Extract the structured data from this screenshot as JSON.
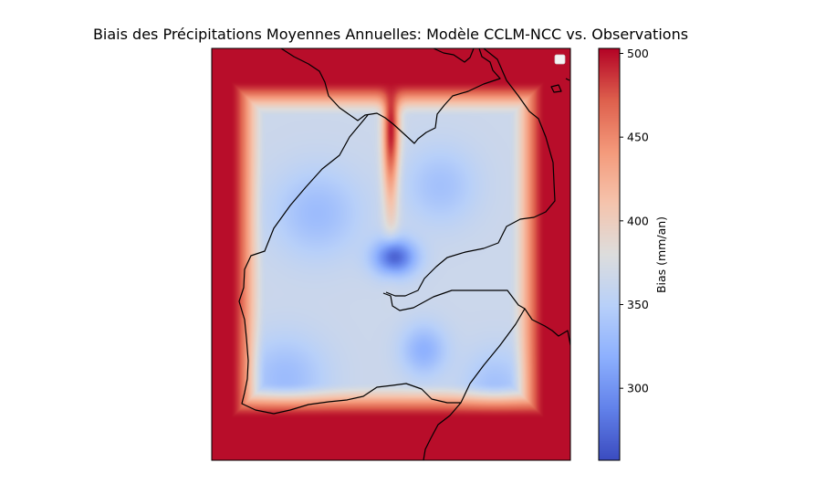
{
  "chart_data": {
    "type": "heatmap",
    "title": "Biais des Précipitations Moyennes Annuelles: Modèle CCLM-NCC vs. Observations",
    "colorbar": {
      "label": "Bias (mm/an)",
      "range": [
        257,
        503
      ],
      "ticks": [
        300,
        350,
        400,
        450,
        500
      ],
      "tick_labels": [
        "300",
        "350",
        "400",
        "450",
        "500"
      ],
      "colormap": "coolwarm"
    },
    "legend": {
      "placement": "upper right",
      "entries": []
    },
    "field": {
      "outside_value": 500,
      "interior_base_value": 365,
      "anomalies": [
        {
          "location": "north-central strip",
          "value": 500
        },
        {
          "location": "Gulf of Tadjoura",
          "value": 270
        },
        {
          "location": "west-central Djibouti",
          "value": 330
        },
        {
          "location": "north-east Djibouti",
          "value": 335
        },
        {
          "location": "southern Djibouti",
          "value": 320
        },
        {
          "location": "south-west Djibouti",
          "value": 330
        },
        {
          "location": "south-east coast",
          "value": 335
        }
      ]
    },
    "colors": {
      "low": "#3b4cc0",
      "mid": "#dddddd",
      "high": "#b40426",
      "coastline": "#000000"
    }
  }
}
